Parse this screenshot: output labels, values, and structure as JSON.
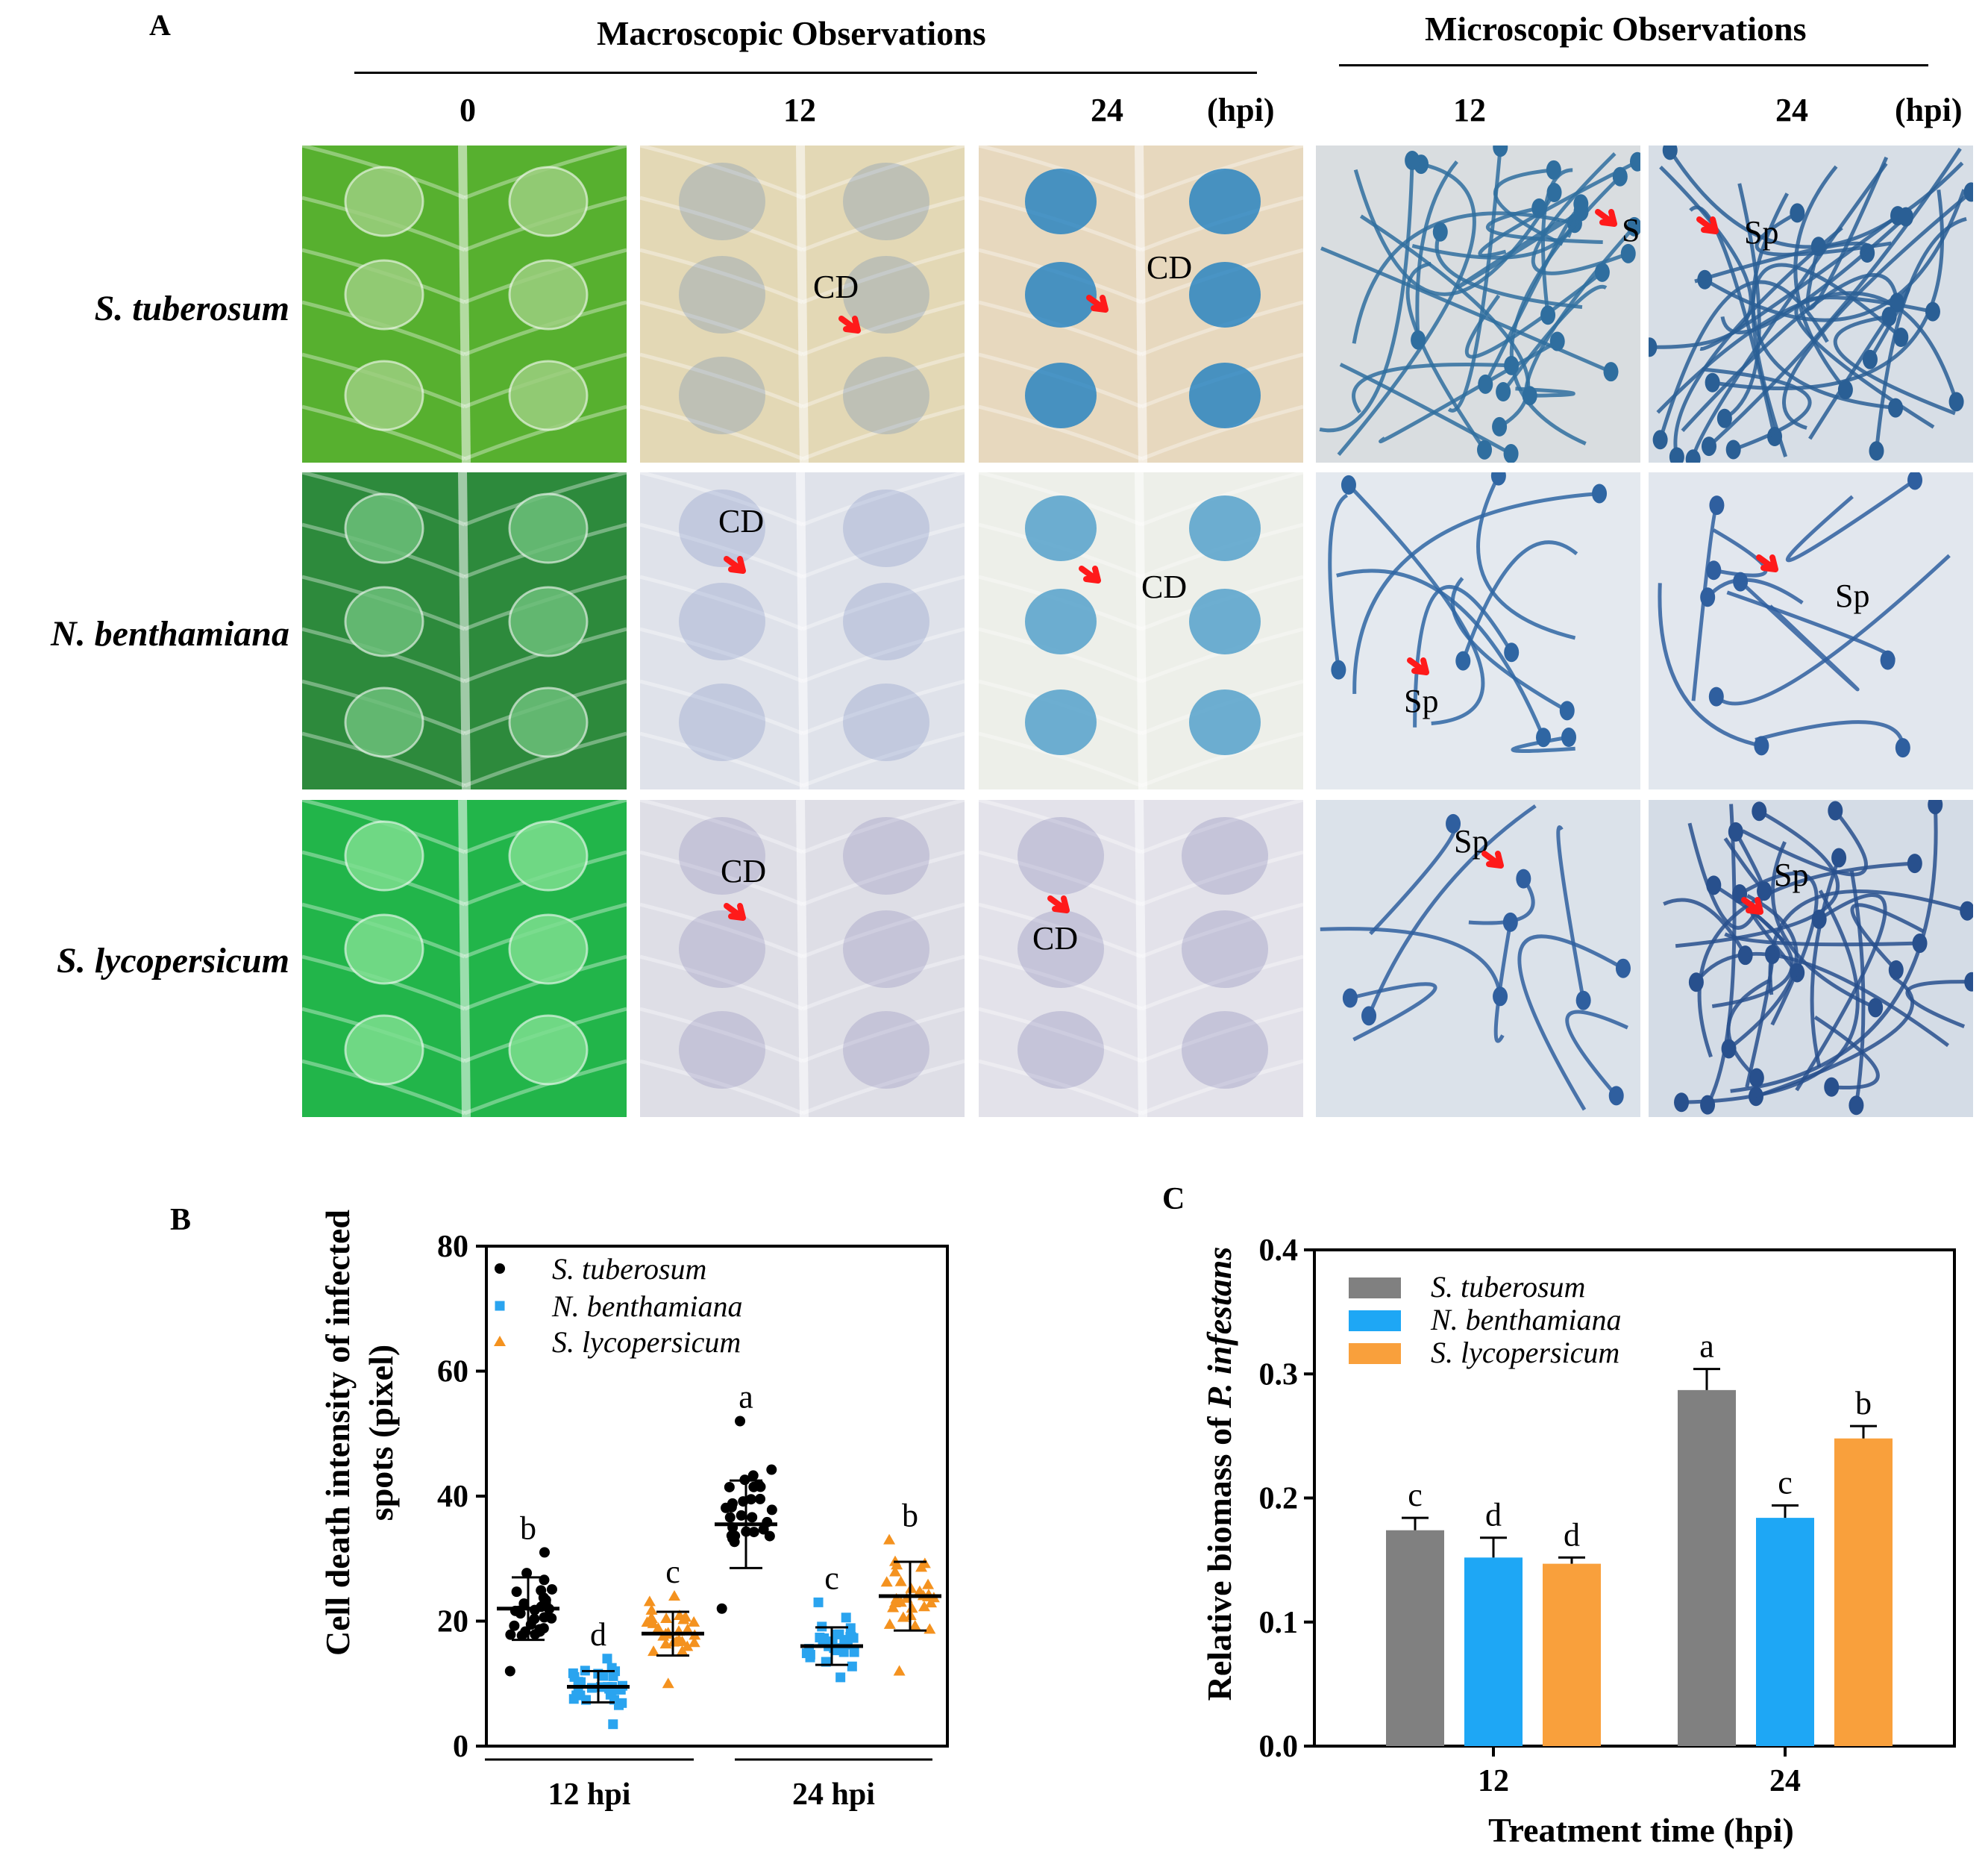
{
  "panel_a": {
    "letter": "A",
    "macro_title": "Macroscopic Observations",
    "micro_title": "Microscopic Observations",
    "macro_cols": [
      "0",
      "12",
      "24"
    ],
    "micro_cols": [
      "12",
      "24"
    ],
    "unit": "(hpi)",
    "rows": [
      "S. tuberosum",
      "N. benthamiana",
      "S. lycopersicum"
    ],
    "cd_label": "CD",
    "sp_label": "Sp",
    "colors": {
      "leaf_green": "#4fae2a",
      "stain_blue": "#2a6fb0",
      "arrow_red": "#ff1a1a",
      "cleared_tan": "#d6c9a4",
      "cleared_grey": "#dde0e8"
    }
  },
  "chart_data": [
    {
      "panel": "B",
      "type": "scatter",
      "ylabel_line1": "Cell death intensity of infected",
      "ylabel_line2": "spots (pixel)",
      "ylim": [
        0,
        80
      ],
      "yticks": [
        "0",
        "20",
        "40",
        "60",
        "80"
      ],
      "groups": [
        "12 hpi",
        "24 hpi"
      ],
      "legend": [
        "S. tuberosum",
        "N. benthamiana",
        "S. lycopersicum"
      ],
      "legend_position": "top-left",
      "colors": [
        "#000000",
        "#2aa4ef",
        "#f4921f"
      ],
      "markers": [
        "circle",
        "square",
        "triangle"
      ],
      "series": [
        {
          "name": "S. tuberosum",
          "group": "12 hpi",
          "mean": 22,
          "sd": 5,
          "min": 12,
          "max": 31,
          "letter": "b"
        },
        {
          "name": "N. benthamiana",
          "group": "12 hpi",
          "mean": 9.5,
          "sd": 2.5,
          "min": 3.5,
          "max": 14,
          "letter": "d"
        },
        {
          "name": "S. lycopersicum",
          "group": "12 hpi",
          "mean": 18,
          "sd": 3.5,
          "min": 10,
          "max": 24,
          "letter": "c"
        },
        {
          "name": "S. tuberosum",
          "group": "24 hpi",
          "mean": 35.5,
          "sd": 7,
          "min": 22,
          "max": 52,
          "letter": "a"
        },
        {
          "name": "N. benthamiana",
          "group": "24 hpi",
          "mean": 16,
          "sd": 3,
          "min": 11,
          "max": 23,
          "letter": "c"
        },
        {
          "name": "S. lycopersicum",
          "group": "24 hpi",
          "mean": 24,
          "sd": 5.5,
          "min": 12,
          "max": 33,
          "letter": "b"
        }
      ],
      "points_per_series": 30
    },
    {
      "panel": "C",
      "type": "bar",
      "ylabel_plain": "Relative  biomass of ",
      "ylabel_italic": "P. infestans",
      "xlabel": "Treatment time (hpi)",
      "categories": [
        "12",
        "24"
      ],
      "ylim": [
        0,
        0.4
      ],
      "yticks": [
        "0.0",
        "0.1",
        "0.2",
        "0.3",
        "0.4"
      ],
      "legend_position": "top-left",
      "colors": [
        "#808080",
        "#1ea7f5",
        "#f9a03c"
      ],
      "series": [
        {
          "name": "S. tuberosum",
          "values": [
            0.174,
            0.287
          ],
          "errors": [
            0.01,
            0.017
          ],
          "letters": [
            "c",
            "a"
          ]
        },
        {
          "name": "N. benthamiana",
          "values": [
            0.152,
            0.184
          ],
          "errors": [
            0.016,
            0.01
          ],
          "letters": [
            "d",
            "c"
          ]
        },
        {
          "name": "S. lycopersicum",
          "values": [
            0.147,
            0.248
          ],
          "errors": [
            0.005,
            0.01
          ],
          "letters": [
            "d",
            "b"
          ]
        }
      ]
    }
  ]
}
